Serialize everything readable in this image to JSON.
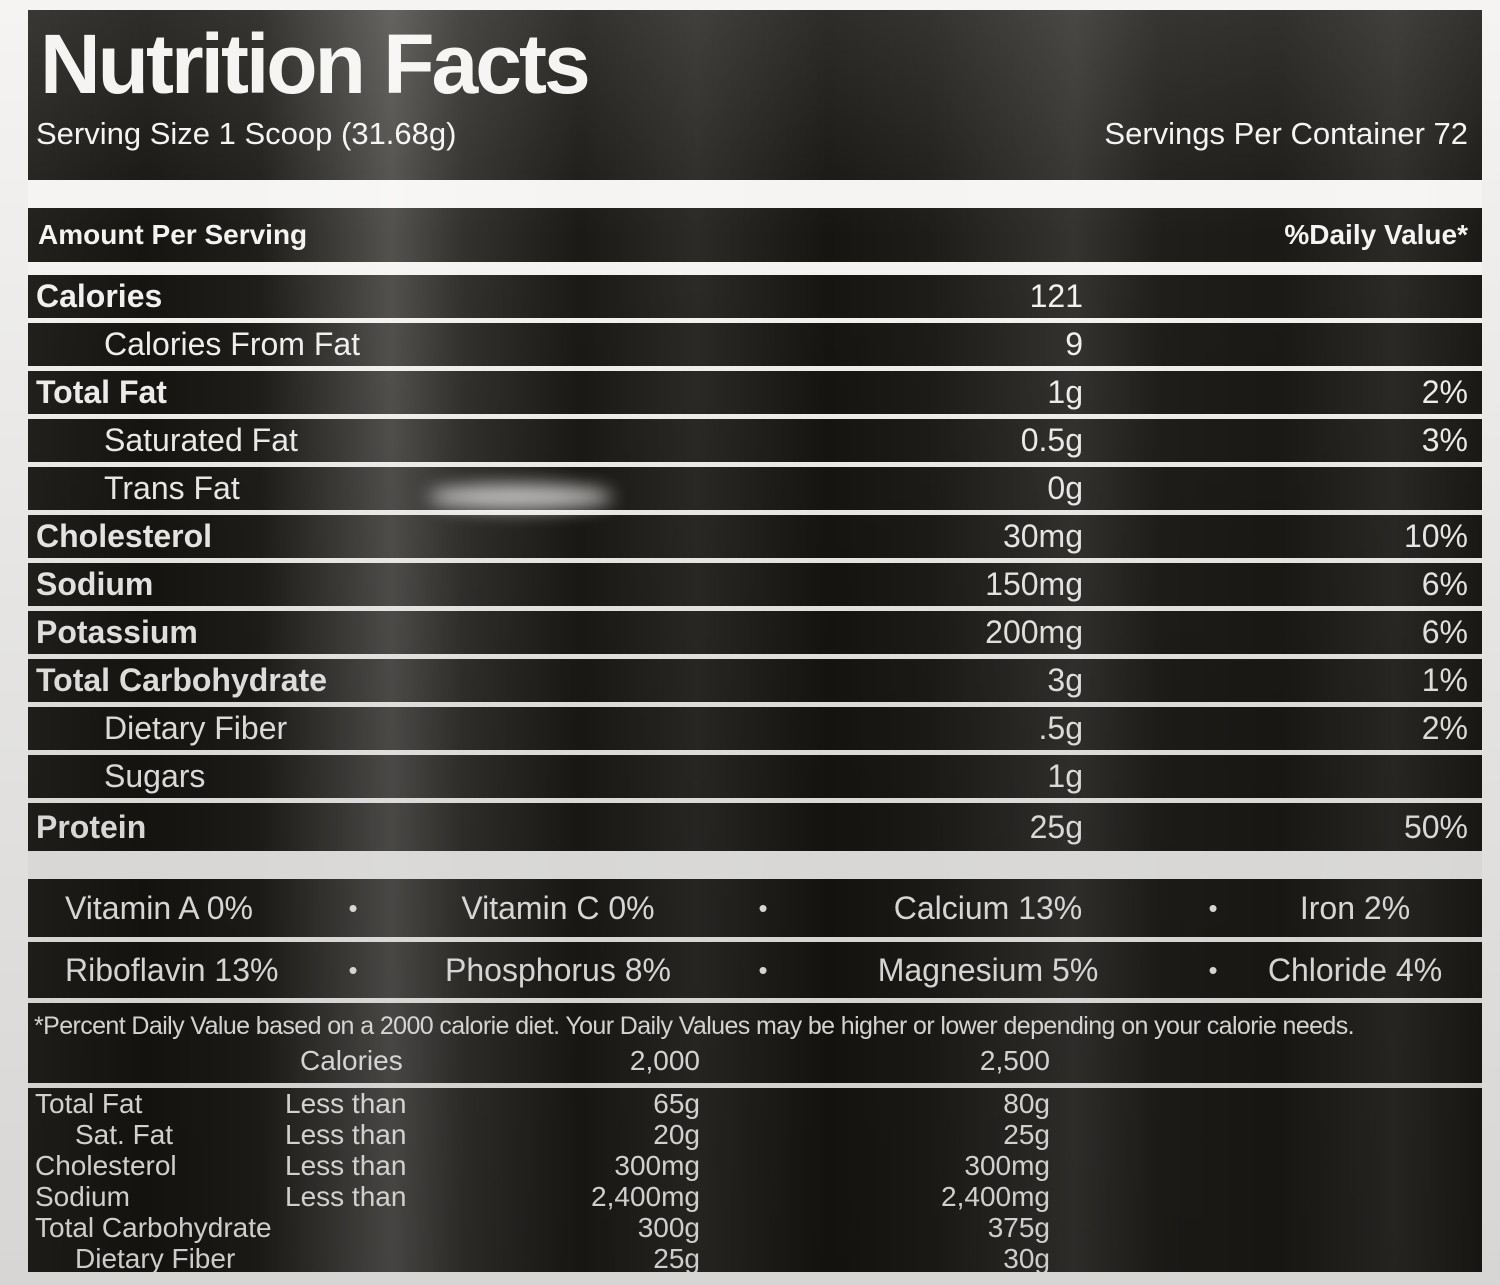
{
  "label": {
    "title": "Nutrition Facts",
    "serving_size": "Serving Size 1 Scoop (31.68g)",
    "servings_per_container": "Servings Per Container 72",
    "amount_per_serving": "Amount Per Serving",
    "daily_value_header": "%Daily Value*",
    "rows": [
      {
        "name": "Calories",
        "amount": "121",
        "dv": ""
      },
      {
        "name": "Calories From Fat",
        "amount": "9",
        "dv": ""
      },
      {
        "name": "Total Fat",
        "amount": "1g",
        "dv": "2%"
      },
      {
        "name": "Saturated Fat",
        "amount": "0.5g",
        "dv": "3%"
      },
      {
        "name": "Trans Fat",
        "amount": "0g",
        "dv": ""
      },
      {
        "name": "Cholesterol",
        "amount": "30mg",
        "dv": "10%"
      },
      {
        "name": "Sodium",
        "amount": "150mg",
        "dv": "6%"
      },
      {
        "name": "Potassium",
        "amount": "200mg",
        "dv": "6%"
      },
      {
        "name": "Total Carbohydrate",
        "amount": "3g",
        "dv": "1%"
      },
      {
        "name": "Dietary Fiber",
        "amount": ".5g",
        "dv": "2%"
      },
      {
        "name": "Sugars",
        "amount": "1g",
        "dv": ""
      },
      {
        "name": "Protein",
        "amount": "25g",
        "dv": "50%"
      }
    ],
    "micros": [
      [
        "Vitamin A 0%",
        "Vitamin C 0%",
        "Calcium 13%",
        "Iron 2%"
      ],
      [
        "Riboflavin 13%",
        "Phosphorus 8%",
        "Magnesium 5%",
        "Chloride 4%"
      ]
    ],
    "glyphs": {
      "bullet": "•"
    },
    "footnote": "*Percent Daily Value based on a 2000 calorie diet. Your Daily Values may be higher or lower depending on your calorie needs.",
    "ref": {
      "header": {
        "calories": "Calories",
        "col2000": "2,000",
        "col2500": "2,500"
      },
      "rows": [
        {
          "name": "Total Fat",
          "qualifier": "Less than",
          "v2000": "65g",
          "v2500": "80g"
        },
        {
          "name": "Sat. Fat",
          "qualifier": "Less than",
          "v2000": "20g",
          "v2500": "25g"
        },
        {
          "name": "Cholesterol",
          "qualifier": "Less than",
          "v2000": "300mg",
          "v2500": "300mg"
        },
        {
          "name": "Sodium",
          "qualifier": "Less than",
          "v2000": "2,400mg",
          "v2500": "2,400mg"
        },
        {
          "name": "Total Carbohydrate",
          "qualifier": "",
          "v2000": "300g",
          "v2500": "375g"
        },
        {
          "name": "Dietary Fiber",
          "qualifier": "",
          "v2000": "25g",
          "v2500": "30g"
        }
      ]
    },
    "colors": {
      "label_bg": "#171511",
      "text": "#f4f3f1",
      "divider": "#f5f4f2",
      "frame_bg": "#e6e5e3"
    }
  }
}
